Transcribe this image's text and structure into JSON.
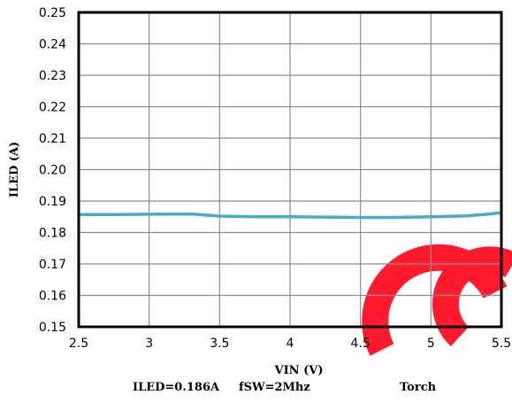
{
  "chart_data": {
    "type": "line",
    "xlabel": "VIN (V)",
    "ylabel": "ILED (A)",
    "xlim": [
      2.5,
      5.5
    ],
    "ylim": [
      0.15,
      0.25
    ],
    "x_ticks": [
      "2.5",
      "3",
      "3.5",
      "4",
      "4.5",
      "5",
      "5.5"
    ],
    "y_ticks": [
      "0.25",
      "0.24",
      "0.23",
      "0.22",
      "0.21",
      "0.20",
      "0.19",
      "0.18",
      "0.17",
      "0.16",
      "0.15"
    ],
    "grid": true,
    "series": [
      {
        "color": "#4bacc6",
        "x": [
          2.5,
          2.75,
          3.0,
          3.3,
          3.5,
          3.75,
          4.0,
          4.25,
          4.5,
          4.75,
          5.0,
          5.25,
          5.4,
          5.5
        ],
        "y": [
          0.1857,
          0.1857,
          0.1858,
          0.1859,
          0.1852,
          0.185,
          0.185,
          0.1849,
          0.1848,
          0.1848,
          0.185,
          0.1853,
          0.1858,
          0.1863
        ]
      }
    ],
    "captions": [
      "ILED=0.186A",
      "fSW=2Mhz",
      "Torch"
    ]
  },
  "watermark": {
    "color": "#ff1a2e"
  }
}
